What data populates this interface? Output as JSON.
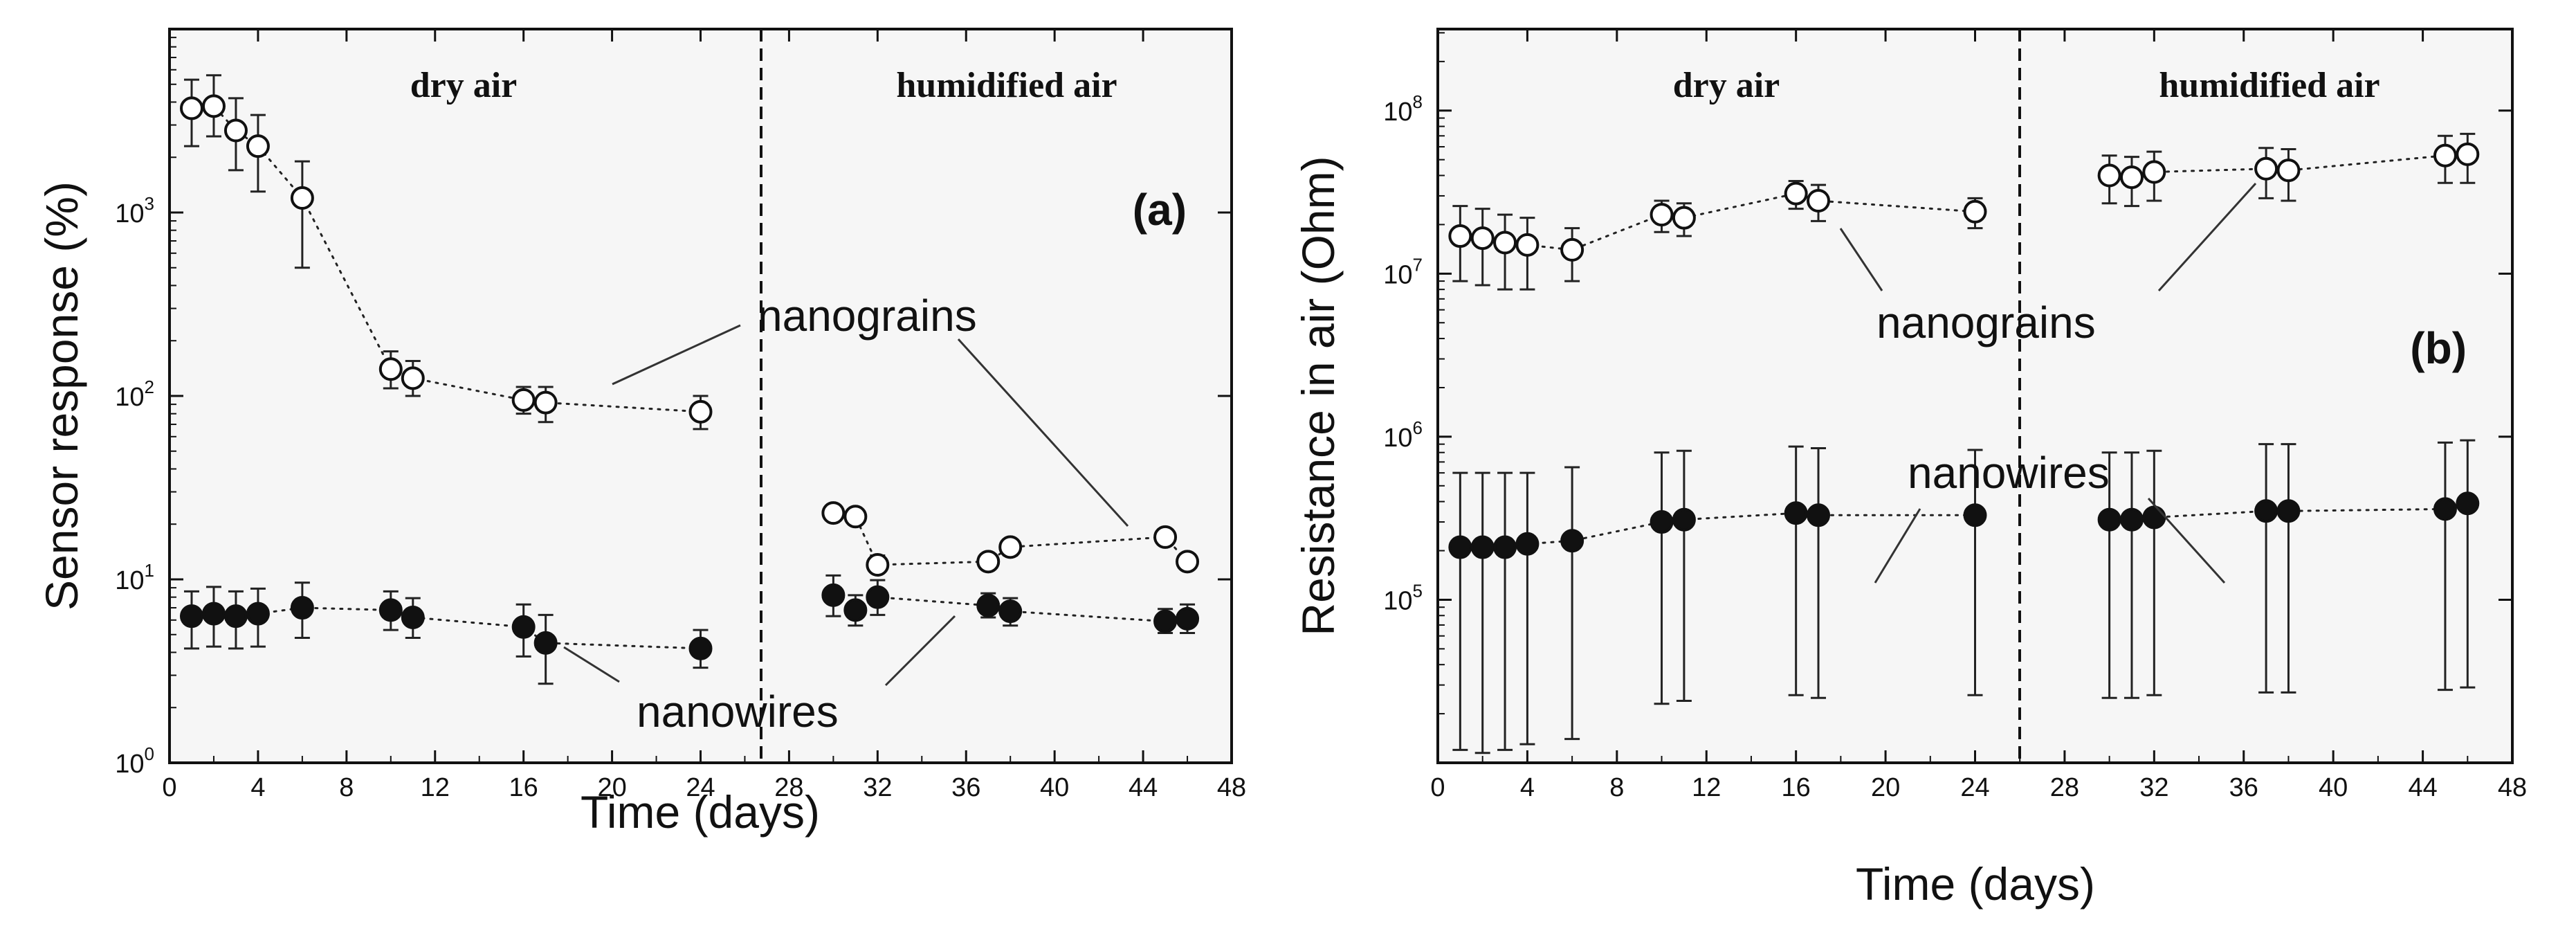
{
  "chart_data": [
    {
      "type": "scatter",
      "panel_label": "(a)",
      "xlabel": "Time (days)",
      "ylabel": "Sensor response (%)",
      "xlim": [
        0,
        48
      ],
      "ylim_log10": [
        0,
        4
      ],
      "y_scale": "log",
      "x_ticks": [
        "0",
        "4",
        "8",
        "12",
        "16",
        "20",
        "24",
        "28",
        "32",
        "36",
        "40",
        "44",
        "48"
      ],
      "y_ticks": [
        {
          "base": "10",
          "exp": "0"
        },
        {
          "base": "10",
          "exp": "1"
        },
        {
          "base": "10",
          "exp": "2"
        },
        {
          "base": "10",
          "exp": "3"
        }
      ],
      "regions": [
        "dry air",
        "humidified air"
      ],
      "divider_x": 26,
      "callouts": {
        "upper": "nanograins",
        "lower": "nanowires"
      },
      "series": [
        {
          "name": "nanograins",
          "marker": "open-circle",
          "segments": [
            [
              {
                "x": 1,
                "y": 3700,
                "lo": 2300,
                "hi": 5300
              },
              {
                "x": 2,
                "y": 3800,
                "lo": 2600,
                "hi": 5600
              },
              {
                "x": 3,
                "y": 2800,
                "lo": 1700,
                "hi": 4200
              },
              {
                "x": 4,
                "y": 2300,
                "lo": 1300,
                "hi": 3400
              },
              {
                "x": 6,
                "y": 1200,
                "lo": 500,
                "hi": 1900
              },
              {
                "x": 10,
                "y": 140,
                "lo": 110,
                "hi": 175
              },
              {
                "x": 11,
                "y": 125,
                "lo": 100,
                "hi": 155
              },
              {
                "x": 16,
                "y": 95,
                "lo": 80,
                "hi": 112
              },
              {
                "x": 17,
                "y": 92,
                "lo": 72,
                "hi": 112
              },
              {
                "x": 24,
                "y": 82,
                "lo": 66,
                "hi": 100
              }
            ],
            [
              {
                "x": 30,
                "y": 23,
                "lo": 21,
                "hi": 25
              },
              {
                "x": 31,
                "y": 22,
                "lo": 20,
                "hi": 24
              },
              {
                "x": 32,
                "y": 12,
                "lo": 11,
                "hi": 13.5
              },
              {
                "x": 37,
                "y": 12.5,
                "lo": 11.5,
                "hi": 13.5
              },
              {
                "x": 38,
                "y": 15,
                "lo": 13.5,
                "hi": 16.5
              },
              {
                "x": 45,
                "y": 17,
                "lo": 15.5,
                "hi": 18.5
              },
              {
                "x": 46,
                "y": 12.5,
                "lo": 11.5,
                "hi": 13.5
              }
            ]
          ]
        },
        {
          "name": "nanowires",
          "marker": "filled-circle",
          "segments": [
            [
              {
                "x": 1,
                "y": 6.3,
                "lo": 4.2,
                "hi": 8.6
              },
              {
                "x": 2,
                "y": 6.5,
                "lo": 4.3,
                "hi": 9.1
              },
              {
                "x": 3,
                "y": 6.3,
                "lo": 4.2,
                "hi": 8.6
              },
              {
                "x": 4,
                "y": 6.5,
                "lo": 4.3,
                "hi": 8.9
              },
              {
                "x": 6,
                "y": 7,
                "lo": 4.8,
                "hi": 9.6
              },
              {
                "x": 10,
                "y": 6.8,
                "lo": 5.3,
                "hi": 8.6
              },
              {
                "x": 11,
                "y": 6.2,
                "lo": 4.8,
                "hi": 7.9
              },
              {
                "x": 16,
                "y": 5.5,
                "lo": 3.8,
                "hi": 7.3
              },
              {
                "x": 17,
                "y": 4.5,
                "lo": 2.7,
                "hi": 6.4
              },
              {
                "x": 24,
                "y": 4.2,
                "lo": 3.3,
                "hi": 5.3
              }
            ],
            [
              {
                "x": 30,
                "y": 8.2,
                "lo": 6.3,
                "hi": 10.5
              },
              {
                "x": 31,
                "y": 6.8,
                "lo": 5.6,
                "hi": 8.2
              },
              {
                "x": 32,
                "y": 8,
                "lo": 6.4,
                "hi": 9.9
              },
              {
                "x": 37,
                "y": 7.2,
                "lo": 6.2,
                "hi": 8.4
              },
              {
                "x": 38,
                "y": 6.7,
                "lo": 5.6,
                "hi": 7.9
              },
              {
                "x": 45,
                "y": 5.9,
                "lo": 5.1,
                "hi": 6.9
              },
              {
                "x": 46,
                "y": 6.1,
                "lo": 5.1,
                "hi": 7.3
              }
            ]
          ]
        }
      ]
    },
    {
      "type": "scatter",
      "panel_label": "(b)",
      "xlabel": "Time (days)",
      "ylabel": "Resistance in air (Ohm)",
      "xlim": [
        0,
        48
      ],
      "ylim_log10": [
        4,
        8.5
      ],
      "y_scale": "log",
      "x_ticks": [
        "0",
        "4",
        "8",
        "12",
        "16",
        "20",
        "24",
        "28",
        "32",
        "36",
        "40",
        "44",
        "48"
      ],
      "y_ticks": [
        {
          "base": "10",
          "exp": "5"
        },
        {
          "base": "10",
          "exp": "6"
        },
        {
          "base": "10",
          "exp": "7"
        },
        {
          "base": "10",
          "exp": "8"
        }
      ],
      "regions": [
        "dry air",
        "humidified air"
      ],
      "divider_x": 26,
      "callouts": {
        "upper": "nanograins",
        "lower": "nanowires"
      },
      "series": [
        {
          "name": "nanograins",
          "marker": "open-circle",
          "segments": [
            [
              {
                "x": 1,
                "y": 17000000.0,
                "lo": 9000000.0,
                "hi": 26000000.0
              },
              {
                "x": 2,
                "y": 16500000.0,
                "lo": 8500000.0,
                "hi": 25000000.0
              },
              {
                "x": 3,
                "y": 15500000.0,
                "lo": 8000000.0,
                "hi": 23000000.0
              },
              {
                "x": 4,
                "y": 15000000.0,
                "lo": 8000000.0,
                "hi": 22000000.0
              },
              {
                "x": 6,
                "y": 14000000.0,
                "lo": 9000000.0,
                "hi": 19000000.0
              },
              {
                "x": 10,
                "y": 23000000.0,
                "lo": 18000000.0,
                "hi": 28000000.0
              },
              {
                "x": 11,
                "y": 22000000.0,
                "lo": 17000000.0,
                "hi": 27000000.0
              },
              {
                "x": 16,
                "y": 31000000.0,
                "lo": 25000000.0,
                "hi": 37000000.0
              },
              {
                "x": 17,
                "y": 28000000.0,
                "lo": 21000000.0,
                "hi": 35000000.0
              },
              {
                "x": 24,
                "y": 24000000.0,
                "lo": 19000000.0,
                "hi": 29000000.0
              }
            ],
            [
              {
                "x": 30,
                "y": 40000000.0,
                "lo": 27000000.0,
                "hi": 53000000.0
              },
              {
                "x": 31,
                "y": 39000000.0,
                "lo": 26000000.0,
                "hi": 52000000.0
              },
              {
                "x": 32,
                "y": 42000000.0,
                "lo": 28000000.0,
                "hi": 56000000.0
              },
              {
                "x": 37,
                "y": 44000000.0,
                "lo": 29000000.0,
                "hi": 59000000.0
              },
              {
                "x": 38,
                "y": 43000000.0,
                "lo": 28000000.0,
                "hi": 58000000.0
              },
              {
                "x": 45,
                "y": 53000000.0,
                "lo": 36000000.0,
                "hi": 70000000.0
              },
              {
                "x": 46,
                "y": 54000000.0,
                "lo": 36000000.0,
                "hi": 72000000.0
              }
            ]
          ]
        },
        {
          "name": "nanowires",
          "marker": "filled-circle",
          "segments": [
            [
              {
                "x": 1,
                "y": 210000.0,
                "lo": 12000.0,
                "hi": 600000.0
              },
              {
                "x": 2,
                "y": 210000.0,
                "lo": 11500.0,
                "hi": 600000.0
              },
              {
                "x": 3,
                "y": 210000.0,
                "lo": 12000.0,
                "hi": 600000.0
              },
              {
                "x": 4,
                "y": 220000.0,
                "lo": 13000.0,
                "hi": 600000.0
              },
              {
                "x": 6,
                "y": 230000.0,
                "lo": 14000.0,
                "hi": 650000.0
              },
              {
                "x": 10,
                "y": 300000.0,
                "lo": 23000.0,
                "hi": 800000.0
              },
              {
                "x": 11,
                "y": 310000.0,
                "lo": 24000.0,
                "hi": 820000.0
              },
              {
                "x": 16,
                "y": 340000.0,
                "lo": 26000.0,
                "hi": 870000.0
              },
              {
                "x": 17,
                "y": 330000.0,
                "lo": 25000.0,
                "hi": 850000.0
              },
              {
                "x": 24,
                "y": 330000.0,
                "lo": 26000.0,
                "hi": 830000.0
              }
            ],
            [
              {
                "x": 30,
                "y": 310000.0,
                "lo": 25000.0,
                "hi": 800000.0
              },
              {
                "x": 31,
                "y": 310000.0,
                "lo": 25000.0,
                "hi": 800000.0
              },
              {
                "x": 32,
                "y": 320000.0,
                "lo": 26000.0,
                "hi": 820000.0
              },
              {
                "x": 37,
                "y": 350000.0,
                "lo": 27000.0,
                "hi": 900000.0
              },
              {
                "x": 38,
                "y": 350000.0,
                "lo": 27000.0,
                "hi": 900000.0
              },
              {
                "x": 45,
                "y": 360000.0,
                "lo": 28000.0,
                "hi": 920000.0
              },
              {
                "x": 46,
                "y": 390000.0,
                "lo": 29000.0,
                "hi": 950000.0
              }
            ]
          ]
        }
      ]
    }
  ]
}
